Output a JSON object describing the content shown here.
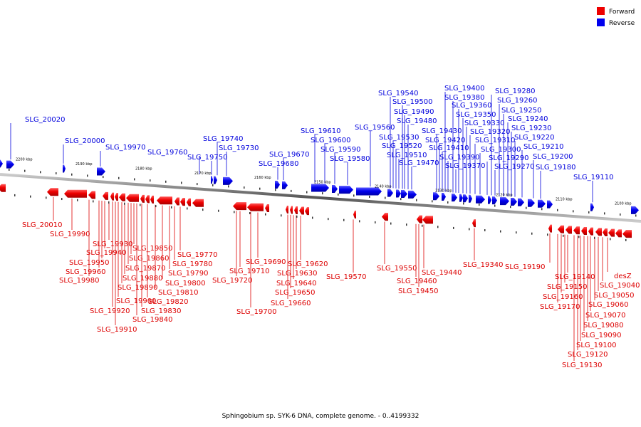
{
  "legend": [
    {
      "label": "Forward",
      "color": "#ee0000"
    },
    {
      "label": "Reverse",
      "color": "#0000ee"
    }
  ],
  "caption": "Sphingobium sp. SYK-6 DNA, complete genome. - 0..4199332",
  "scale_ticks": [
    "2200 kbp",
    "2190 kbp",
    "2180 kbp",
    "2170 kbp",
    "2160 kbp",
    "2150 kbp",
    "2140 kbp",
    "2130 kbp",
    "2120 kbp",
    "2110 kbp",
    "2100 kbp"
  ],
  "reverse_labels": [
    "SLG_20020",
    "SLG_20000",
    "SLG_19970",
    "SLG_19760",
    "SLG_19750",
    "SLG_19740",
    "SLG_19730",
    "SLG_19680",
    "SLG_19670",
    "SLG_19610",
    "SLG_19600",
    "SLG_19590",
    "SLG_19580",
    "SLG_19560",
    "SLG_19540",
    "SLG_19530",
    "SLG_19520",
    "SLG_19510",
    "SLG_19500",
    "SLG_19490",
    "SLG_19480",
    "SLG_19470",
    "SLG_19430",
    "SLG_19420",
    "SLG_19410",
    "SLG_19400",
    "SLG_19390",
    "SLG_19380",
    "SLG_19370",
    "SLG_19360",
    "SLG_19350",
    "SLG_19330",
    "SLG_19320",
    "SLG_19310",
    "SLG_19300",
    "SLG_19290",
    "SLG_19280",
    "SLG_19270",
    "SLG_19260",
    "SLG_19250",
    "SLG_19240",
    "SLG_19230",
    "SLG_19220",
    "SLG_19210",
    "SLG_19200",
    "SLG_19180",
    "SLG_19110"
  ],
  "forward_labels": [
    "SLG_20010",
    "SLG_19990",
    "SLG_19980",
    "SLG_19960",
    "SLG_19950",
    "SLG_19940",
    "SLG_19930",
    "SLG_19920",
    "SLG_19910",
    "SLG_19900",
    "SLG_19890",
    "SLG_19880",
    "SLG_19870",
    "SLG_19860",
    "SLG_19850",
    "SLG_19840",
    "SLG_19830",
    "SLG_19820",
    "SLG_19810",
    "SLG_19800",
    "SLG_19790",
    "SLG_19780",
    "SLG_19770",
    "SLG_19720",
    "SLG_19710",
    "SLG_19700",
    "SLG_19690",
    "SLG_19660",
    "SLG_19650",
    "SLG_19640",
    "SLG_19630",
    "SLG_19620",
    "SLG_19570",
    "SLG_19550",
    "SLG_19460",
    "SLG_19450",
    "SLG_19440",
    "SLG_19340",
    "SLG_19190",
    "SLG_19170",
    "SLG_19160",
    "SLG_19150",
    "SLG_19140",
    "SLG_19130",
    "SLG_19120",
    "SLG_19100",
    "SLG_19090",
    "SLG_19080",
    "SLG_19070",
    "SLG_19060",
    "SLG_19050",
    "SLG_19040",
    "desZ"
  ]
}
